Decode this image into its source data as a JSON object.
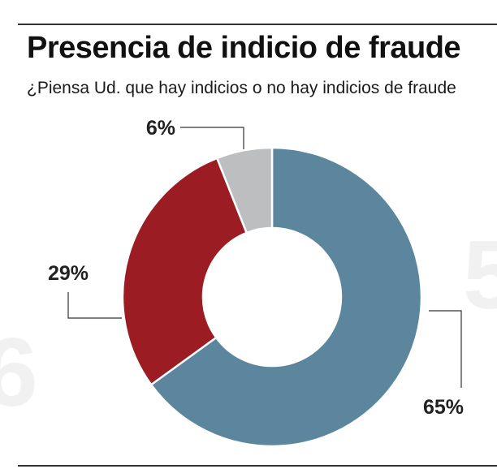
{
  "header": {
    "title": "Presencia de indicio de fraude",
    "subtitle": "¿Piensa Ud. que hay indicios o no hay indicios de fraude"
  },
  "chart_data": {
    "type": "pie",
    "variant": "donut",
    "title": "Presencia de indicio de fraude",
    "subtitle": "¿Piensa Ud. que hay indicios o no hay indicios de fraude",
    "slices": [
      {
        "value": 65,
        "label": "65%",
        "color": "#5b869e"
      },
      {
        "value": 29,
        "label": "29%",
        "color": "#9b1c23"
      },
      {
        "value": 6,
        "label": "6%",
        "color": "#bcbec0"
      }
    ],
    "legend": "none"
  }
}
